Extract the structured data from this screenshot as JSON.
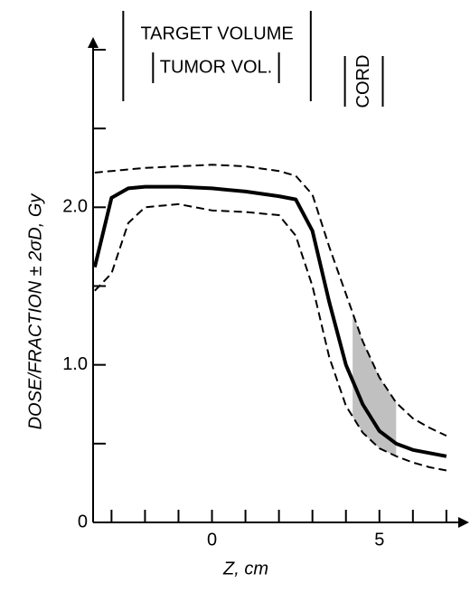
{
  "chart_data": {
    "type": "line",
    "x_label": "Z, cm",
    "y_label": "DOSE/FRACTION ± 2σD, Gy",
    "x": [
      -3.5,
      -3,
      -2.5,
      -2,
      -1,
      0,
      1,
      2,
      2.5,
      3,
      3.5,
      4,
      4.5,
      5,
      5.5,
      6,
      6.5,
      7
    ],
    "series": [
      {
        "color": "#000000",
        "line_style": "solid",
        "values": [
          1.62,
          2.06,
          2.12,
          2.13,
          2.13,
          2.12,
          2.1,
          2.07,
          2.05,
          1.85,
          1.4,
          1.0,
          0.75,
          0.58,
          0.5,
          0.46,
          0.44,
          0.42
        ]
      },
      {
        "color": "#000000",
        "line_style": "dashed",
        "values": [
          2.22,
          2.23,
          2.24,
          2.25,
          2.26,
          2.27,
          2.26,
          2.23,
          2.2,
          2.08,
          1.75,
          1.45,
          1.15,
          0.92,
          0.76,
          0.66,
          0.6,
          0.55
        ]
      },
      {
        "color": "#000000",
        "line_style": "dashed",
        "values": [
          1.47,
          1.58,
          1.9,
          2.0,
          2.02,
          1.98,
          1.97,
          1.95,
          1.82,
          1.5,
          1.05,
          0.74,
          0.57,
          0.47,
          0.42,
          0.38,
          0.35,
          0.33
        ]
      }
    ],
    "shaded_x": [
      4.2,
      5.5
    ],
    "shade_color": "#b0b0b0",
    "xlim": [
      -3.55,
      7.3
    ],
    "ylim": [
      0,
      3.0
    ],
    "xticks": [
      0,
      5
    ],
    "x_minor_ticks": [
      -3,
      -2,
      -1,
      1,
      2,
      3,
      4,
      6,
      7
    ],
    "yticks": [
      0,
      {
        "value": 1,
        "label": "1.0"
      },
      {
        "value": 2,
        "label": "2.0"
      }
    ],
    "y_minor_ticks": [
      0.5,
      1.5,
      2.5,
      3.0
    ],
    "regions": [
      {
        "label": "TARGET VOLUME",
        "range": [
          -2.65,
          2.95
        ]
      },
      {
        "label": "TUMOR VOL.",
        "range": [
          -1.76,
          2.0
        ]
      },
      {
        "label": "CORD",
        "range": [
          3.97,
          5.1
        ]
      }
    ]
  }
}
